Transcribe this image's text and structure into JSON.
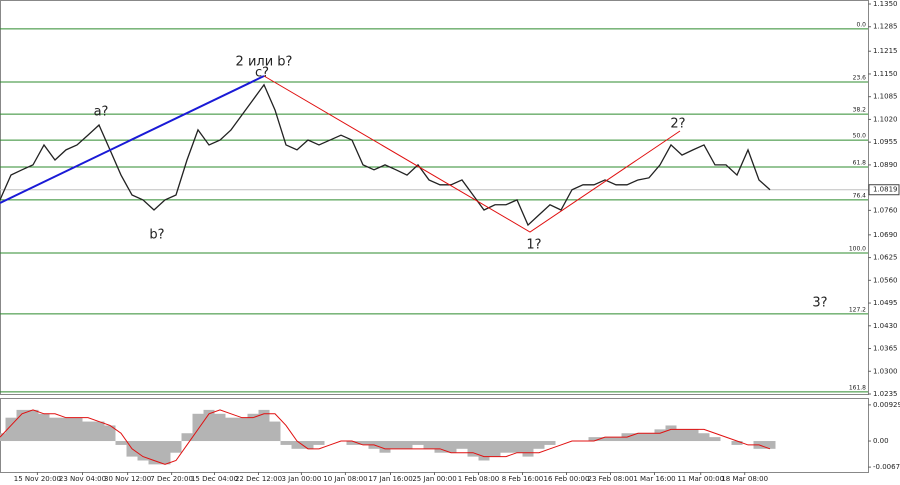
{
  "chart_data": {
    "type": "line",
    "price": {
      "color": "#222222",
      "x": [
        0,
        1,
        2,
        3,
        4,
        5,
        6,
        7,
        8,
        9,
        10,
        11,
        12,
        13,
        14,
        15,
        16,
        17,
        18,
        19,
        20,
        21,
        22,
        23,
        24,
        25,
        26,
        27,
        28,
        29,
        30,
        31,
        32,
        33,
        34,
        35,
        36,
        37,
        38,
        39,
        40,
        41,
        42,
        43,
        44,
        45,
        46,
        47,
        48,
        49,
        50,
        51,
        52,
        53,
        54,
        55,
        56,
        57,
        58,
        59,
        60,
        61,
        62,
        63,
        64,
        65,
        66,
        67,
        68,
        69,
        70
      ],
      "values": [
        1.079,
        1.0861,
        1.0876,
        1.089,
        1.0947,
        1.0904,
        1.0933,
        1.0947,
        1.0975,
        1.1004,
        1.0933,
        1.0861,
        1.0804,
        1.079,
        1.0761,
        1.079,
        1.0804,
        1.0904,
        1.099,
        1.0947,
        1.0961,
        1.099,
        1.1033,
        1.1076,
        1.1119,
        1.1047,
        1.0947,
        1.0933,
        1.0961,
        1.0947,
        1.0961,
        1.0975,
        1.0961,
        1.089,
        1.0876,
        1.089,
        1.0876,
        1.0861,
        1.089,
        1.0847,
        1.0833,
        1.0833,
        1.0847,
        1.0804,
        1.0761,
        1.0776,
        1.0776,
        1.079,
        1.0718,
        1.0747,
        1.0776,
        1.0761,
        1.0819,
        1.0833,
        1.0833,
        1.0847,
        1.0833,
        1.0833,
        1.0847,
        1.0853,
        1.089,
        1.0947,
        1.0918,
        1.0933,
        1.0947,
        1.089,
        1.089,
        1.0861,
        1.0933,
        1.0847,
        1.0819
      ]
    },
    "last_price": 1.0819,
    "xlim": [
      0,
      70
    ],
    "ylim": [
      1.0235,
      1.135
    ],
    "yticks": [
      {
        "value": 1.135,
        "label": "1.1350"
      },
      {
        "value": 1.1285,
        "label": "1.1285"
      },
      {
        "value": 1.1215,
        "label": "1.1215"
      },
      {
        "value": 1.115,
        "label": "1.1150"
      },
      {
        "value": 1.1085,
        "label": "1.1085"
      },
      {
        "value": 1.102,
        "label": "1.1020"
      },
      {
        "value": 1.0955,
        "label": "1.0955"
      },
      {
        "value": 1.089,
        "label": "1.0890"
      },
      {
        "value": 1.076,
        "label": "1.0760"
      },
      {
        "value": 1.069,
        "label": "1.0690"
      },
      {
        "value": 1.0625,
        "label": "1.0625"
      },
      {
        "value": 1.056,
        "label": "1.0560"
      },
      {
        "value": 1.0495,
        "label": "1.0495"
      },
      {
        "value": 1.043,
        "label": "1.0430"
      },
      {
        "value": 1.0365,
        "label": "1.0365"
      },
      {
        "value": 1.03,
        "label": "1.0300"
      },
      {
        "value": 1.0235,
        "label": "1.0235"
      }
    ],
    "xticks": [
      {
        "value": 3.4,
        "label": "15 Nov 20:00"
      },
      {
        "value": 7.5,
        "label": "23 Nov 04:00"
      },
      {
        "value": 11.6,
        "label": "30 Nov 12:00"
      },
      {
        "value": 15.6,
        "label": "7 Dec 20:00"
      },
      {
        "value": 19.5,
        "label": "15 Dec 04:00"
      },
      {
        "value": 23.5,
        "label": "22 Dec 12:00"
      },
      {
        "value": 27.4,
        "label": "3 Jan 00:00"
      },
      {
        "value": 31.4,
        "label": "10 Jan 08:00"
      },
      {
        "value": 35.5,
        "label": "17 Jan 16:00"
      },
      {
        "value": 39.5,
        "label": "25 Jan 00:00"
      },
      {
        "value": 43.5,
        "label": "1 Feb 08:00"
      },
      {
        "value": 47.5,
        "label": "8 Feb 16:00"
      },
      {
        "value": 51.5,
        "label": "16 Feb 00:00"
      },
      {
        "value": 55.5,
        "label": "23 Feb 08:00"
      },
      {
        "value": 59.5,
        "label": "1 Mar 16:00"
      },
      {
        "value": 63.7,
        "label": "11 Mar 00:00"
      },
      {
        "value": 67.7,
        "label": "18 Mar 08:00"
      }
    ],
    "fib_levels": [
      {
        "label": "0.0",
        "value": 1.1279
      },
      {
        "label": "23.6",
        "value": 1.1127
      },
      {
        "label": "38.2",
        "value": 1.1035
      },
      {
        "label": "50.0",
        "value": 1.0961
      },
      {
        "label": "61.8",
        "value": 1.0884
      },
      {
        "label": "76.4",
        "value": 1.079
      },
      {
        "label": "100.0",
        "value": 1.0638
      },
      {
        "label": "127.2",
        "value": 1.0464
      },
      {
        "label": "161.8",
        "value": 1.0241
      }
    ],
    "fib_color": "#2e8b2e",
    "annotations": [
      {
        "text": "2 или b?",
        "color": "#1a1ad6"
      },
      {
        "text": "c?",
        "color": "#d01010"
      },
      {
        "text": "a?",
        "color": "#d01010"
      },
      {
        "text": "b?",
        "color": "#d01010"
      },
      {
        "text": "1?",
        "color": "#d01010"
      },
      {
        "text": "2?",
        "color": "#d01010"
      },
      {
        "text": "3?",
        "color": "#d01010"
      }
    ],
    "oscillator": {
      "ylim": [
        -0.0077,
        0.0108
      ],
      "yticks": [
        0.00929,
        {
          "value": 0,
          "label": "0.00"
        },
        -0.0067
      ],
      "histogram": {
        "color": "#b4b4b4",
        "values": [
          0.002,
          0.006,
          0.008,
          0.008,
          0.007,
          0.006,
          0.006,
          0.006,
          0.005,
          0.005,
          0.004,
          -0.001,
          -0.004,
          -0.005,
          -0.006,
          -0.006,
          -0.003,
          0.002,
          0.007,
          0.008,
          0.007,
          0.006,
          0.006,
          0.007,
          0.008,
          0.005,
          -0.001,
          -0.002,
          -0.002,
          -0.001,
          0,
          0,
          -0.001,
          -0.001,
          -0.002,
          -0.003,
          -0.002,
          -0.002,
          -0.001,
          -0.002,
          -0.003,
          -0.003,
          -0.002,
          -0.004,
          -0.005,
          -0.004,
          -0.003,
          -0.003,
          -0.004,
          -0.002,
          -0.001,
          0,
          0,
          0,
          0.001,
          0.001,
          0.001,
          0.002,
          0.002,
          0.002,
          0.003,
          0.004,
          0.003,
          0.003,
          0.002,
          0.001,
          0,
          -0.001,
          0,
          -0.002,
          -0.002
        ]
      },
      "signal": {
        "color": "#e01010",
        "values": [
          0.001,
          0.004,
          0.007,
          0.008,
          0.007,
          0.007,
          0.006,
          0.006,
          0.006,
          0.005,
          0.004,
          0.002,
          -0.002,
          -0.004,
          -0.005,
          -0.006,
          -0.005,
          -0.001,
          0.003,
          0.007,
          0.008,
          0.007,
          0.006,
          0.006,
          0.007,
          0.007,
          0.004,
          0,
          -0.002,
          -0.002,
          -0.001,
          0,
          0,
          -0.001,
          -0.001,
          -0.002,
          -0.002,
          -0.002,
          -0.002,
          -0.002,
          -0.002,
          -0.003,
          -0.003,
          -0.003,
          -0.004,
          -0.004,
          -0.004,
          -0.003,
          -0.003,
          -0.003,
          -0.002,
          -0.001,
          0,
          0,
          0,
          0.001,
          0.001,
          0.001,
          0.002,
          0.002,
          0.002,
          0.003,
          0.003,
          0.003,
          0.003,
          0.002,
          0.001,
          0,
          -0.001,
          -0.001,
          -0.002
        ]
      }
    }
  }
}
